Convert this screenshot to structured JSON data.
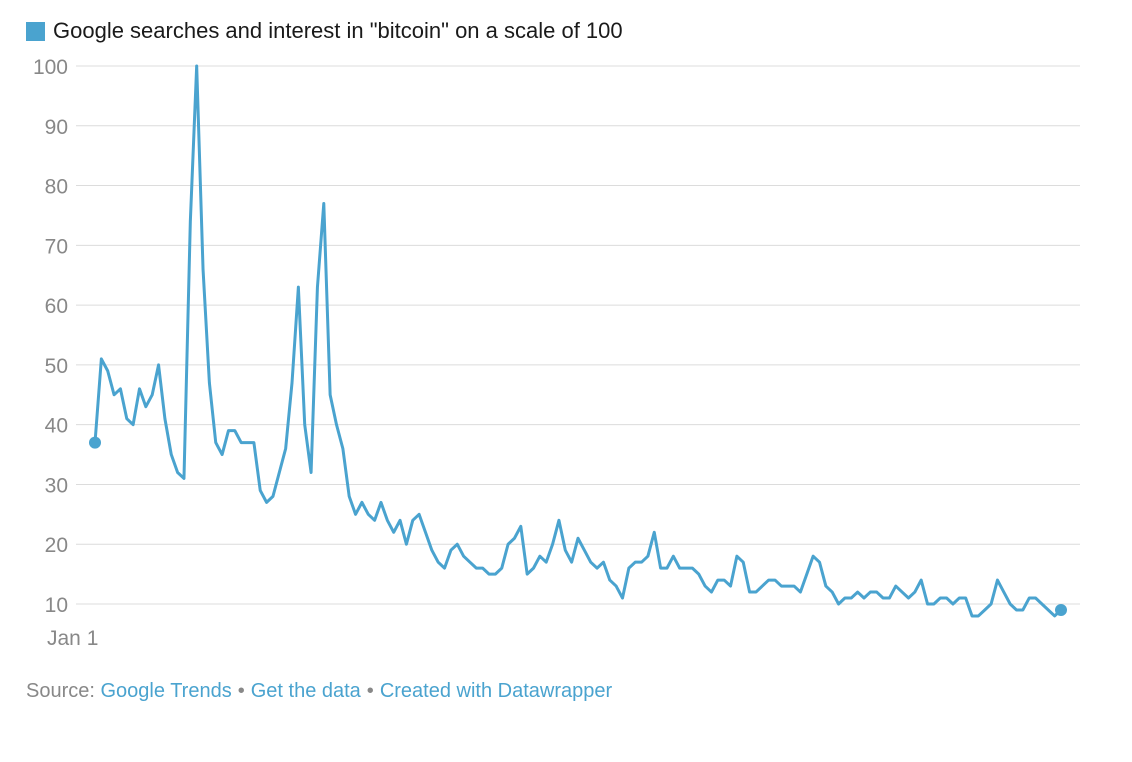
{
  "colors": {
    "line": "#4aa3cf",
    "grid": "#dcdcdc",
    "tick_text": "#888888"
  },
  "chart_data": {
    "type": "line",
    "title": "",
    "xlabel": "",
    "ylabel": "",
    "ylim": [
      10,
      100
    ],
    "yticks": [
      100,
      90,
      80,
      70,
      60,
      50,
      40,
      30,
      20,
      10
    ],
    "x_tick_label": "Jan 1",
    "grid": true,
    "legend_position": "top-left",
    "series": [
      {
        "name": "Google searches and interest in \"bitcoin\" on a scale of 100",
        "values": [
          37,
          51,
          49,
          45,
          46,
          41,
          40,
          46,
          43,
          45,
          50,
          41,
          35,
          32,
          31,
          74,
          100,
          66,
          47,
          37,
          35,
          39,
          39,
          37,
          37,
          37,
          29,
          27,
          28,
          32,
          36,
          47,
          63,
          40,
          32,
          63,
          77,
          45,
          40,
          36,
          28,
          25,
          27,
          25,
          24,
          27,
          24,
          22,
          24,
          20,
          24,
          25,
          22,
          19,
          17,
          16,
          19,
          20,
          18,
          17,
          16,
          16,
          15,
          15,
          16,
          20,
          21,
          23,
          15,
          16,
          18,
          17,
          20,
          24,
          19,
          17,
          21,
          19,
          17,
          16,
          17,
          14,
          13,
          11,
          16,
          17,
          17,
          18,
          22,
          16,
          16,
          18,
          16,
          16,
          16,
          15,
          13,
          12,
          14,
          14,
          13,
          18,
          17,
          12,
          12,
          13,
          14,
          14,
          13,
          13,
          13,
          12,
          15,
          18,
          17,
          13,
          12,
          10,
          11,
          11,
          12,
          11,
          12,
          12,
          11,
          11,
          13,
          12,
          11,
          12,
          14,
          10,
          10,
          11,
          11,
          10,
          11,
          11,
          8,
          8,
          9,
          10,
          14,
          12,
          10,
          9,
          9,
          11,
          11,
          10,
          9,
          8,
          9
        ]
      }
    ]
  },
  "legend": {
    "label": "Google searches and interest in \"bitcoin\" on a scale of 100"
  },
  "source": {
    "prefix": "Source:",
    "link1": "Google Trends",
    "sep": "•",
    "link2": "Get the data",
    "link3": "Created with Datawrapper"
  }
}
